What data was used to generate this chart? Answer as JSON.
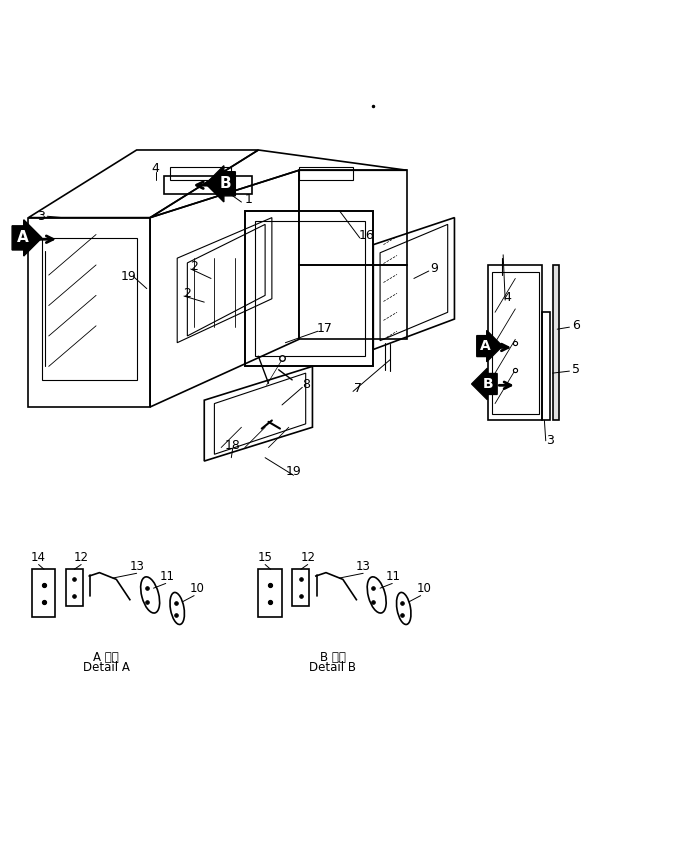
{
  "bg_color": "#ffffff",
  "line_color": "#000000",
  "figsize": [
    6.79,
    8.68
  ],
  "dpi": 100,
  "detail_a_title": "A 詳細",
  "detail_a_sub": "Detail A",
  "detail_b_title": "B 詳細",
  "detail_b_sub": "Detail B"
}
